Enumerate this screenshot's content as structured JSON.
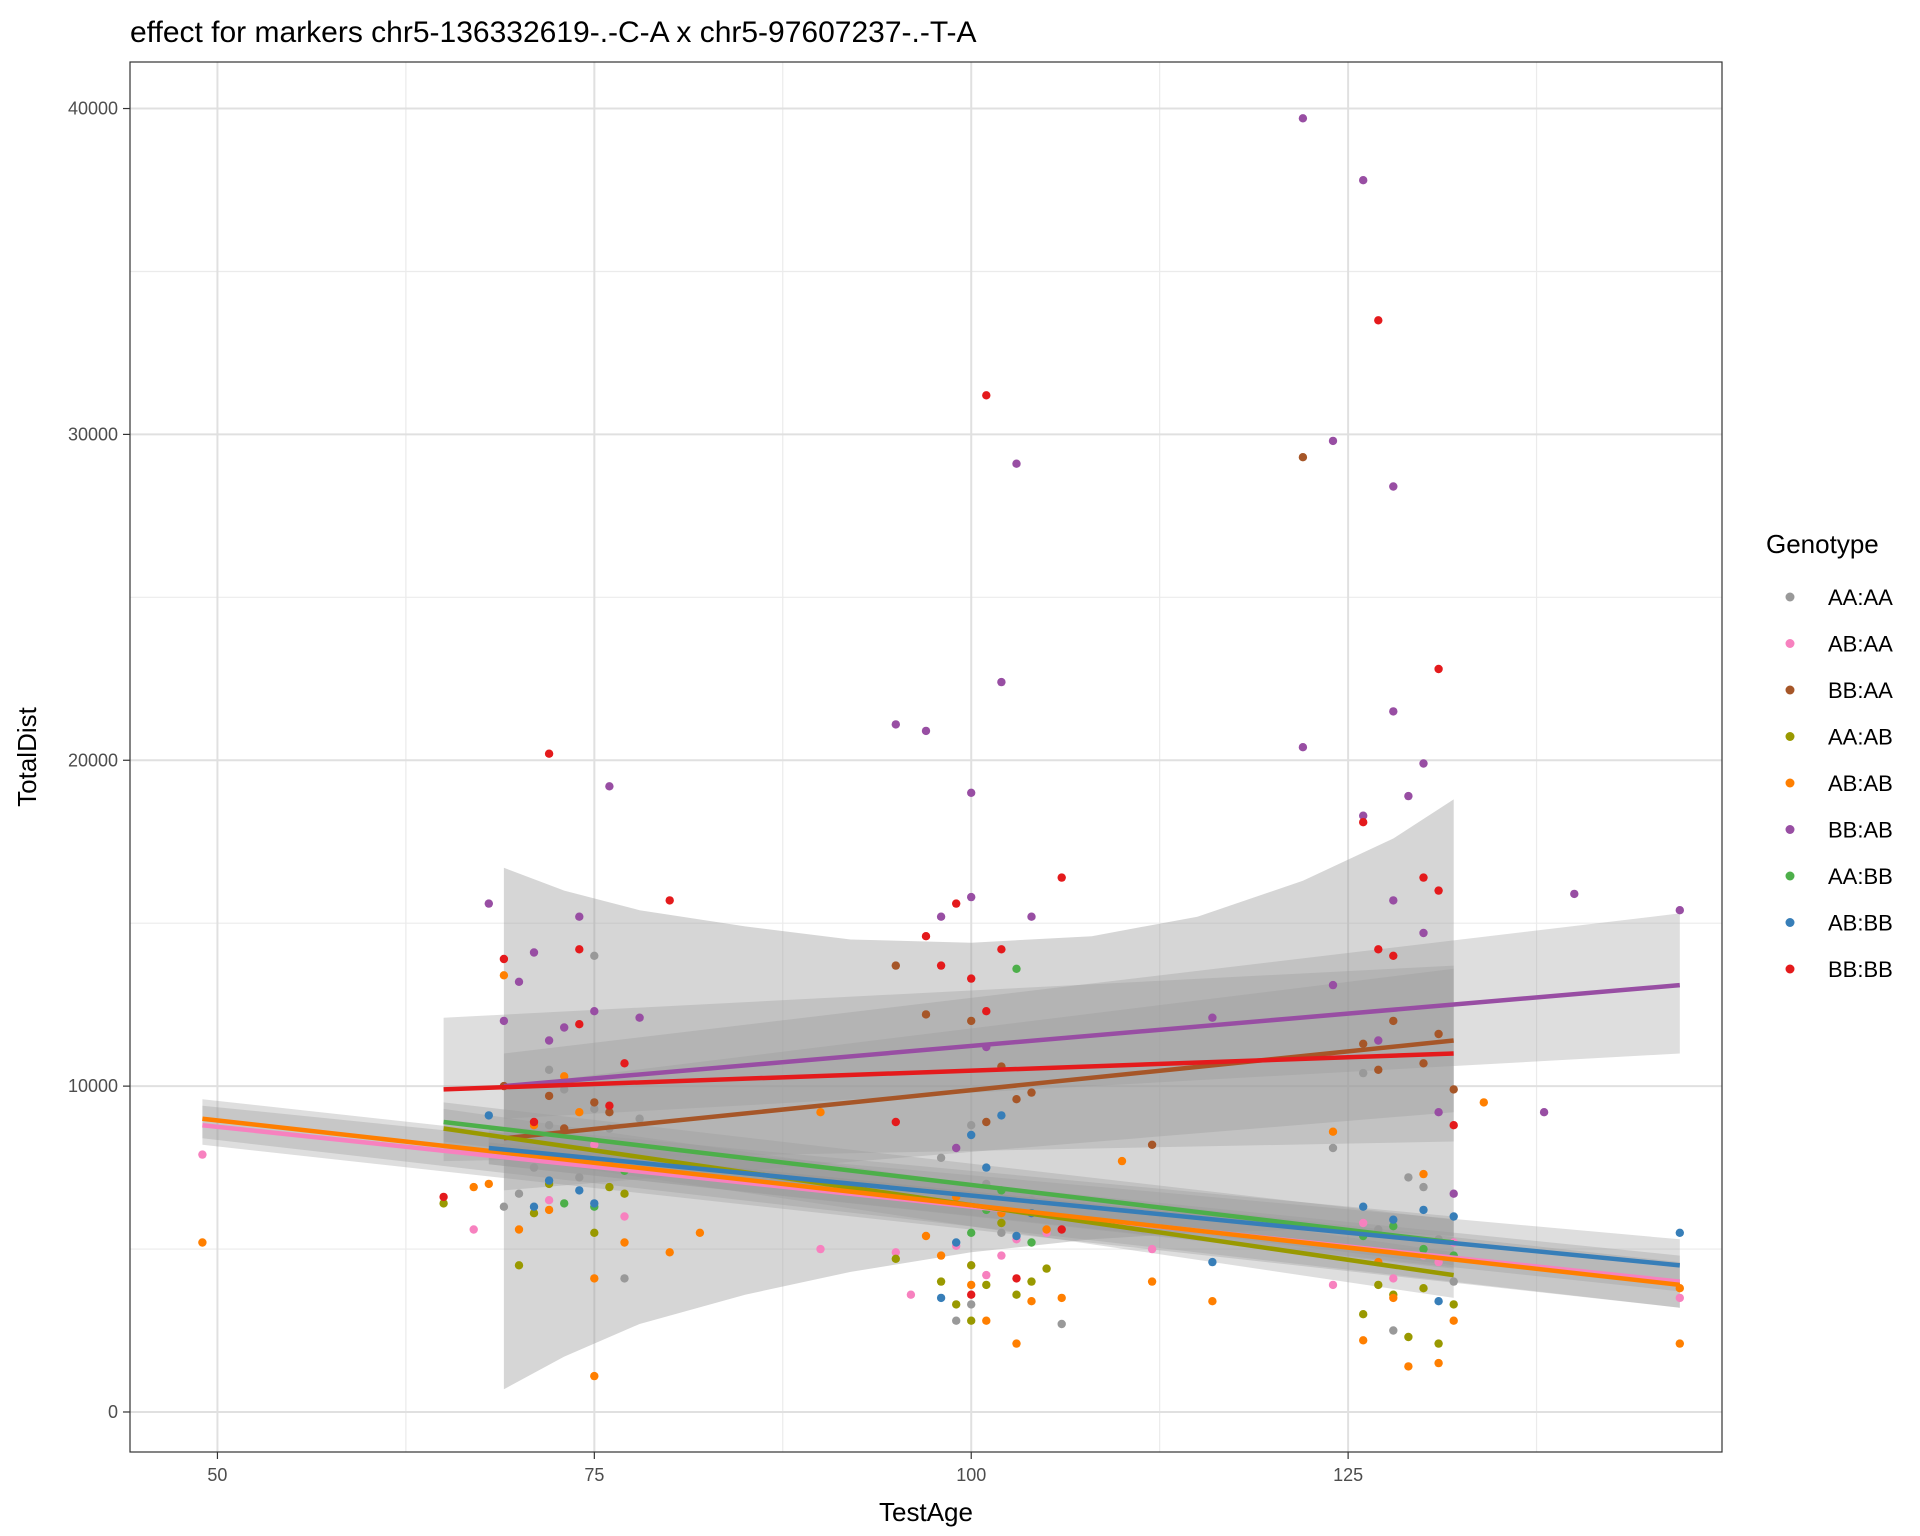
{
  "chart_data": {
    "type": "scatter",
    "title": "effect for markers chr5-136332619-.-C-A x chr5-97607237-.-T-A",
    "xlabel": "TestAge",
    "ylabel": "TotalDist",
    "xlim": [
      44.2,
      149.8
    ],
    "ylim": [
      -1228,
      41428
    ],
    "x_ticks": [
      50,
      75,
      100,
      125
    ],
    "y_ticks": [
      0,
      10000,
      20000,
      30000,
      40000
    ],
    "grid": true,
    "legend": {
      "title": "Genotype",
      "position": "right"
    },
    "series": [
      {
        "name": "AA:AA",
        "color": "#999999",
        "points": [
          [
            69,
            6300
          ],
          [
            70,
            6700
          ],
          [
            71,
            7500
          ],
          [
            72,
            8800
          ],
          [
            72,
            10500
          ],
          [
            73,
            9900
          ],
          [
            74,
            7200
          ],
          [
            75,
            9300
          ],
          [
            75,
            14000
          ],
          [
            76,
            8700
          ],
          [
            77,
            4100
          ],
          [
            78,
            9000
          ],
          [
            98,
            7800
          ],
          [
            99,
            2800
          ],
          [
            100,
            8800
          ],
          [
            100,
            3300
          ],
          [
            101,
            7000
          ],
          [
            102,
            5500
          ],
          [
            104,
            6500
          ],
          [
            106,
            2700
          ],
          [
            124,
            8100
          ],
          [
            126,
            10400
          ],
          [
            127,
            5600
          ],
          [
            128,
            2500
          ],
          [
            129,
            7200
          ],
          [
            130,
            6900
          ],
          [
            131,
            5300
          ],
          [
            132,
            4000
          ]
        ],
        "fit": {
          "x": [
            68,
            132
          ],
          "y": [
            8200,
            5200
          ],
          "band": [
            [
              7600,
              8800
            ],
            [
              4400,
              6000
            ]
          ]
        }
      },
      {
        "name": "AB:AA",
        "color": "#F781BF",
        "points": [
          [
            49,
            7900
          ],
          [
            67,
            5600
          ],
          [
            72,
            6500
          ],
          [
            75,
            8200
          ],
          [
            77,
            6000
          ],
          [
            90,
            5000
          ],
          [
            95,
            4900
          ],
          [
            96,
            3600
          ],
          [
            99,
            5100
          ],
          [
            100,
            4500
          ],
          [
            101,
            4200
          ],
          [
            102,
            4800
          ],
          [
            103,
            5300
          ],
          [
            105,
            5500
          ],
          [
            112,
            5000
          ],
          [
            124,
            3900
          ],
          [
            126,
            5800
          ],
          [
            128,
            4100
          ],
          [
            130,
            4800
          ],
          [
            131,
            4600
          ],
          [
            132,
            5200
          ],
          [
            147,
            3500
          ]
        ],
        "fit": {
          "x": [
            49,
            147
          ],
          "y": [
            8800,
            4000
          ],
          "band": [
            [
              8200,
              9400
            ],
            [
              3200,
              4800
            ]
          ]
        }
      },
      {
        "name": "BB:AA",
        "color": "#A65628",
        "points": [
          [
            69,
            10000
          ],
          [
            72,
            9700
          ],
          [
            73,
            8700
          ],
          [
            75,
            9500
          ],
          [
            76,
            9200
          ],
          [
            95,
            13700
          ],
          [
            97,
            12200
          ],
          [
            100,
            12000
          ],
          [
            101,
            8900
          ],
          [
            102,
            10600
          ],
          [
            103,
            9600
          ],
          [
            104,
            9800
          ],
          [
            112,
            8200
          ],
          [
            122,
            29300
          ],
          [
            126,
            11300
          ],
          [
            127,
            10500
          ],
          [
            128,
            12000
          ],
          [
            130,
            10700
          ],
          [
            131,
            11600
          ],
          [
            132,
            9900
          ]
        ],
        "fit": {
          "x": [
            69,
            132
          ],
          "y": [
            8400,
            11400
          ],
          "band": [
            [
              6800,
              10000
            ],
            [
              9200,
              13600
            ]
          ]
        }
      },
      {
        "name": "AA:AB",
        "color": "#999900",
        "points": [
          [
            65,
            6400
          ],
          [
            70,
            4500
          ],
          [
            71,
            6100
          ],
          [
            72,
            7000
          ],
          [
            75,
            5500
          ],
          [
            76,
            6900
          ],
          [
            77,
            6700
          ],
          [
            95,
            4700
          ],
          [
            98,
            4000
          ],
          [
            99,
            3300
          ],
          [
            100,
            2800
          ],
          [
            100,
            4500
          ],
          [
            101,
            3900
          ],
          [
            102,
            5800
          ],
          [
            103,
            3600
          ],
          [
            104,
            4000
          ],
          [
            105,
            4400
          ],
          [
            126,
            3000
          ],
          [
            127,
            3900
          ],
          [
            128,
            3600
          ],
          [
            129,
            2300
          ],
          [
            130,
            3800
          ],
          [
            131,
            2100
          ],
          [
            132,
            3300
          ]
        ],
        "fit": {
          "x": [
            65,
            132
          ],
          "y": [
            8700,
            4200
          ],
          "band": [
            [
              8100,
              9300
            ],
            [
              3500,
              4900
            ]
          ]
        }
      },
      {
        "name": "AB:AB",
        "color": "#FF7F00",
        "points": [
          [
            49,
            5200
          ],
          [
            67,
            6900
          ],
          [
            68,
            7000
          ],
          [
            69,
            13400
          ],
          [
            70,
            5600
          ],
          [
            71,
            8800
          ],
          [
            72,
            6200
          ],
          [
            73,
            10300
          ],
          [
            74,
            9200
          ],
          [
            75,
            1100
          ],
          [
            75,
            4100
          ],
          [
            76,
            7700
          ],
          [
            77,
            5200
          ],
          [
            80,
            4900
          ],
          [
            82,
            5500
          ],
          [
            90,
            9200
          ],
          [
            97,
            5400
          ],
          [
            98,
            4800
          ],
          [
            99,
            6600
          ],
          [
            100,
            3900
          ],
          [
            101,
            2800
          ],
          [
            102,
            6100
          ],
          [
            103,
            2100
          ],
          [
            104,
            3400
          ],
          [
            105,
            5600
          ],
          [
            106,
            3500
          ],
          [
            110,
            7700
          ],
          [
            112,
            4000
          ],
          [
            116,
            3400
          ],
          [
            124,
            8600
          ],
          [
            126,
            2200
          ],
          [
            127,
            4600
          ],
          [
            128,
            3500
          ],
          [
            129,
            1400
          ],
          [
            130,
            7300
          ],
          [
            131,
            1500
          ],
          [
            132,
            2800
          ],
          [
            134,
            9500
          ],
          [
            147,
            2100
          ],
          [
            147,
            3800
          ]
        ],
        "fit": {
          "x": [
            49,
            147
          ],
          "y": [
            9000,
            3900
          ],
          "band": [
            [
              8400,
              9600
            ],
            [
              3200,
              4600
            ]
          ]
        }
      },
      {
        "name": "BB:AB",
        "color": "#984EA3",
        "points": [
          [
            68,
            15600
          ],
          [
            69,
            12000
          ],
          [
            70,
            13200
          ],
          [
            71,
            14100
          ],
          [
            72,
            11400
          ],
          [
            73,
            11800
          ],
          [
            74,
            15200
          ],
          [
            75,
            12300
          ],
          [
            76,
            19200
          ],
          [
            78,
            12100
          ],
          [
            95,
            21100
          ],
          [
            97,
            20900
          ],
          [
            98,
            15200
          ],
          [
            99,
            8100
          ],
          [
            100,
            19000
          ],
          [
            100,
            15800
          ],
          [
            101,
            11200
          ],
          [
            102,
            22400
          ],
          [
            103,
            29100
          ],
          [
            104,
            15200
          ],
          [
            116,
            12100
          ],
          [
            122,
            39700
          ],
          [
            122,
            20400
          ],
          [
            124,
            29800
          ],
          [
            124,
            13100
          ],
          [
            126,
            37800
          ],
          [
            126,
            18300
          ],
          [
            127,
            11400
          ],
          [
            128,
            28400
          ],
          [
            128,
            21500
          ],
          [
            128,
            15700
          ],
          [
            129,
            18900
          ],
          [
            130,
            19900
          ],
          [
            130,
            14700
          ],
          [
            131,
            9200
          ],
          [
            132,
            6700
          ],
          [
            138,
            9200
          ],
          [
            140,
            15900
          ],
          [
            147,
            15400
          ]
        ],
        "fit": {
          "x": [
            69,
            147
          ],
          "y": [
            10000,
            13100
          ],
          "band": [
            [
              9000,
              11000
            ],
            [
              11000,
              15300
            ]
          ]
        }
      },
      {
        "name": "AA:BB",
        "color": "#4DAF4A",
        "points": [
          [
            73,
            6400
          ],
          [
            75,
            6300
          ],
          [
            77,
            7400
          ],
          [
            100,
            5500
          ],
          [
            101,
            6200
          ],
          [
            102,
            6800
          ],
          [
            103,
            13600
          ],
          [
            104,
            5200
          ],
          [
            126,
            5400
          ],
          [
            128,
            5700
          ],
          [
            130,
            5000
          ],
          [
            132,
            4800
          ]
        ],
        "fit": {
          "x": [
            65,
            132
          ],
          "y": [
            8900,
            5200
          ],
          "band": [
            [
              8300,
              9500
            ],
            [
              4500,
              5900
            ]
          ]
        }
      },
      {
        "name": "AB:BB",
        "color": "#377EB8",
        "points": [
          [
            68,
            9100
          ],
          [
            71,
            6300
          ],
          [
            72,
            7100
          ],
          [
            74,
            6800
          ],
          [
            75,
            6400
          ],
          [
            98,
            3500
          ],
          [
            99,
            5200
          ],
          [
            100,
            8500
          ],
          [
            101,
            7500
          ],
          [
            102,
            9100
          ],
          [
            103,
            5400
          ],
          [
            104,
            6100
          ],
          [
            116,
            4600
          ],
          [
            126,
            6300
          ],
          [
            128,
            5900
          ],
          [
            130,
            6200
          ],
          [
            131,
            3400
          ],
          [
            132,
            6000
          ],
          [
            147,
            5500
          ]
        ],
        "fit": {
          "x": [
            68,
            147
          ],
          "y": [
            8100,
            4500
          ],
          "band": [
            [
              7600,
              8600
            ],
            [
              3700,
              5300
            ]
          ]
        }
      },
      {
        "name": "BB:BB",
        "color": "#E41A1C",
        "points": [
          [
            65,
            6600
          ],
          [
            69,
            13900
          ],
          [
            71,
            8900
          ],
          [
            72,
            20200
          ],
          [
            74,
            11900
          ],
          [
            74,
            14200
          ],
          [
            76,
            9400
          ],
          [
            77,
            10700
          ],
          [
            80,
            15700
          ],
          [
            95,
            8900
          ],
          [
            97,
            14600
          ],
          [
            98,
            13700
          ],
          [
            99,
            15600
          ],
          [
            100,
            13300
          ],
          [
            100,
            3600
          ],
          [
            101,
            31200
          ],
          [
            101,
            12300
          ],
          [
            102,
            14200
          ],
          [
            103,
            4100
          ],
          [
            106,
            16400
          ],
          [
            106,
            5600
          ],
          [
            126,
            18100
          ],
          [
            127,
            33500
          ],
          [
            127,
            14200
          ],
          [
            128,
            14000
          ],
          [
            130,
            16400
          ],
          [
            131,
            22800
          ],
          [
            131,
            16000
          ],
          [
            132,
            8800
          ]
        ],
        "fit": {
          "x": [
            65,
            132
          ],
          "y": [
            9900,
            11000
          ],
          "band": [
            [
              7700,
              12100
            ],
            [
              8300,
              13700
            ]
          ]
        }
      }
    ],
    "overall_band": {
      "x": [
        69,
        73,
        78,
        85,
        92,
        100,
        108,
        115,
        122,
        128,
        132
      ],
      "upper": [
        16700,
        16000,
        15400,
        14900,
        14500,
        14400,
        14600,
        15200,
        16300,
        17600,
        18800
      ],
      "lower": [
        700,
        1700,
        2700,
        3600,
        4300,
        4900,
        5300,
        5500,
        5600,
        5500,
        5400
      ]
    }
  }
}
